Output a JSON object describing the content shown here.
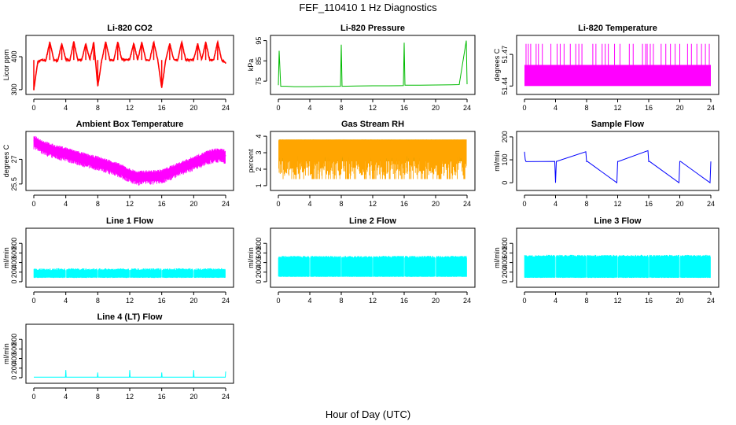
{
  "title": "FEF_110410  1 Hz Diagnostics",
  "xlabel": "Hour of Day (UTC)",
  "chart_data": [
    {
      "type": "line",
      "title": "Li-820 CO2",
      "ylabel": "Licor ppm",
      "color": "#ff0000",
      "xlim": [
        0,
        24
      ],
      "xticks": [
        0,
        4,
        8,
        12,
        16,
        20,
        24
      ],
      "ylim": [
        295,
        455
      ],
      "yticks": [
        300,
        400
      ],
      "x": [
        0.0,
        0.5,
        1.0,
        1.5,
        2.0,
        2.5,
        3.0,
        3.5,
        4.0,
        4.5,
        5.0,
        5.5,
        6.0,
        6.5,
        7.0,
        7.5,
        8.0,
        8.5,
        9.0,
        9.5,
        10.0,
        10.5,
        11.0,
        11.5,
        12.0,
        12.5,
        13.0,
        13.5,
        14.0,
        14.5,
        15.0,
        15.5,
        16.0,
        16.5,
        17.0,
        17.5,
        18.0,
        18.5,
        19.0,
        19.5,
        20.0,
        20.5,
        21.0,
        21.5,
        22.0,
        22.5,
        23.0,
        23.5,
        24.0
      ],
      "y": [
        300,
        385,
        390,
        388,
        445,
        390,
        388,
        440,
        392,
        388,
        445,
        390,
        390,
        440,
        390,
        445,
        310,
        390,
        445,
        390,
        388,
        445,
        392,
        390,
        392,
        440,
        390,
        445,
        390,
        390,
        445,
        390,
        305,
        390,
        440,
        392,
        390,
        445,
        390,
        390,
        392,
        440,
        390,
        445,
        390,
        390,
        445,
        390,
        380
      ]
    },
    {
      "type": "line",
      "title": "Li-820 Pressure",
      "ylabel": "kPa",
      "color": "#00bb00",
      "xlim": [
        0,
        24
      ],
      "xticks": [
        0,
        4,
        8,
        12,
        16,
        20,
        24
      ],
      "ylim": [
        70,
        96
      ],
      "yticks": [
        75,
        85,
        95
      ],
      "x": [
        0.0,
        0.1,
        0.3,
        1.0,
        2.0,
        4.0,
        6.0,
        7.9,
        8.0,
        8.1,
        10.0,
        12.0,
        14.0,
        15.9,
        16.0,
        16.1,
        18.0,
        20.0,
        22.0,
        23.0,
        23.9,
        24.0
      ],
      "y": [
        73,
        90,
        72.5,
        72.5,
        72.3,
        72.3,
        72.4,
        72.5,
        93,
        72.5,
        72.6,
        72.7,
        72.7,
        72.8,
        94,
        73,
        73,
        73.1,
        73.2,
        73.3,
        95,
        73.5
      ]
    },
    {
      "type": "line",
      "title": "Li-820 Temperature",
      "ylabel": "degrees C",
      "color": "#ff00ff",
      "xlim": [
        0,
        24
      ],
      "xticks": [
        0,
        4,
        8,
        12,
        16,
        20,
        24
      ],
      "ylim": [
        51.435,
        51.485
      ],
      "yticks": [
        51.44,
        51.47
      ],
      "band": [
        51.44,
        51.46
      ],
      "spike_value": 51.48,
      "spike_x": [
        0.2,
        0.5,
        0.8,
        1.5,
        1.8,
        2.3,
        3.4,
        4.2,
        4.6,
        5.1,
        5.9,
        6.6,
        7.0,
        7.4,
        8.8,
        9.2,
        10.0,
        10.4,
        10.8,
        11.6,
        12.3,
        13.5,
        14.0,
        15.2,
        15.6,
        15.8,
        16.2,
        16.6,
        17.6,
        18.2,
        18.8,
        19.4,
        20.0,
        21.0,
        21.5,
        22.2,
        22.8,
        23.3,
        23.8
      ]
    },
    {
      "type": "line",
      "title": "Ambient Box Temperature",
      "ylabel": "degrees C",
      "color": "#ff00ff",
      "xlim": [
        0,
        24
      ],
      "xticks": [
        0,
        4,
        8,
        12,
        16,
        20,
        24
      ],
      "ylim": [
        25.3,
        28.5
      ],
      "yticks": [
        25.5,
        27.0
      ],
      "x": [
        0,
        1,
        2,
        3,
        4,
        5,
        6,
        7,
        8,
        9,
        10,
        11,
        12,
        13,
        14,
        15,
        16,
        17,
        18,
        19,
        20,
        21,
        22,
        23,
        24
      ],
      "y": [
        28.1,
        27.8,
        27.6,
        27.45,
        27.35,
        27.2,
        27.05,
        26.9,
        26.8,
        26.65,
        26.5,
        26.3,
        26.05,
        25.9,
        25.95,
        25.95,
        26.0,
        26.2,
        26.4,
        26.6,
        26.8,
        27.0,
        27.2,
        27.3,
        27.2
      ]
    },
    {
      "type": "line",
      "title": "Gas Stream RH",
      "ylabel": "percent",
      "color": "#ffa500",
      "xlim": [
        0,
        24
      ],
      "xticks": [
        0,
        4,
        8,
        12,
        16,
        20,
        24
      ],
      "ylim": [
        0.9,
        4.1
      ],
      "yticks": [
        1.0,
        2.0,
        3.0,
        4.0
      ],
      "band": [
        1.4,
        3.8
      ]
    },
    {
      "type": "line",
      "title": "Sample Flow",
      "ylabel": "ml/min",
      "color": "#0000ff",
      "xlim": [
        0,
        24
      ],
      "xticks": [
        0,
        4,
        8,
        12,
        16,
        20,
        24
      ],
      "ylim": [
        -20,
        210
      ],
      "yticks": [
        0,
        100,
        200
      ],
      "x": [
        0.0,
        0.1,
        0.2,
        3.9,
        4.0,
        4.1,
        7.9,
        8.0,
        8.1,
        11.9,
        12.0,
        12.1,
        15.9,
        16.0,
        16.1,
        19.9,
        20.0,
        20.1,
        23.9,
        24.0
      ],
      "y": [
        135,
        100,
        92,
        93,
        0,
        93,
        135,
        92,
        93,
        0,
        93,
        93,
        140,
        92,
        93,
        0,
        93,
        93,
        0,
        93
      ]
    },
    {
      "type": "line",
      "title": "Line 1 Flow",
      "ylabel": "ml/min",
      "color": "#00ffff",
      "xlim": [
        0,
        24
      ],
      "xticks": [
        0,
        4,
        8,
        12,
        16,
        20,
        24
      ],
      "ylim": [
        -50,
        1050
      ],
      "yticks": [
        0,
        200,
        400,
        600,
        800
      ],
      "band": [
        80,
        280
      ],
      "gaps": [
        4,
        8,
        12,
        16,
        20
      ]
    },
    {
      "type": "line",
      "title": "Line 2 Flow",
      "ylabel": "ml/min",
      "color": "#00ffff",
      "xlim": [
        0,
        24
      ],
      "xticks": [
        0,
        4,
        8,
        12,
        16,
        20,
        24
      ],
      "ylim": [
        -50,
        1050
      ],
      "yticks": [
        0,
        200,
        400,
        600,
        800
      ],
      "band": [
        100,
        540
      ],
      "gaps": [
        4,
        8,
        12,
        16,
        20
      ]
    },
    {
      "type": "line",
      "title": "Line 3 Flow",
      "ylabel": "ml/min",
      "color": "#00ffff",
      "xlim": [
        0,
        24
      ],
      "xticks": [
        0,
        4,
        8,
        12,
        16,
        20,
        24
      ],
      "ylim": [
        -50,
        1050
      ],
      "yticks": [
        0,
        200,
        400,
        600,
        800
      ],
      "band": [
        80,
        560
      ],
      "gaps": [
        4,
        8,
        12,
        16,
        20
      ]
    },
    {
      "type": "line",
      "title": "Line 4 (LT) Flow",
      "ylabel": "ml/min",
      "color": "#00ffff",
      "xlim": [
        0,
        24
      ],
      "xticks": [
        0,
        4,
        8,
        12,
        16,
        20,
        24
      ],
      "ylim": [
        -50,
        1050
      ],
      "yticks": [
        0,
        200,
        400,
        600,
        800
      ],
      "x": [
        0,
        3.95,
        4.0,
        4.05,
        7.95,
        8.0,
        8.05,
        11.95,
        12.0,
        12.05,
        15.95,
        16.0,
        16.05,
        19.95,
        20.0,
        20.05,
        23.95,
        24.0
      ],
      "y": [
        10,
        10,
        160,
        10,
        10,
        110,
        10,
        10,
        160,
        10,
        10,
        110,
        10,
        10,
        160,
        10,
        10,
        130
      ]
    }
  ]
}
